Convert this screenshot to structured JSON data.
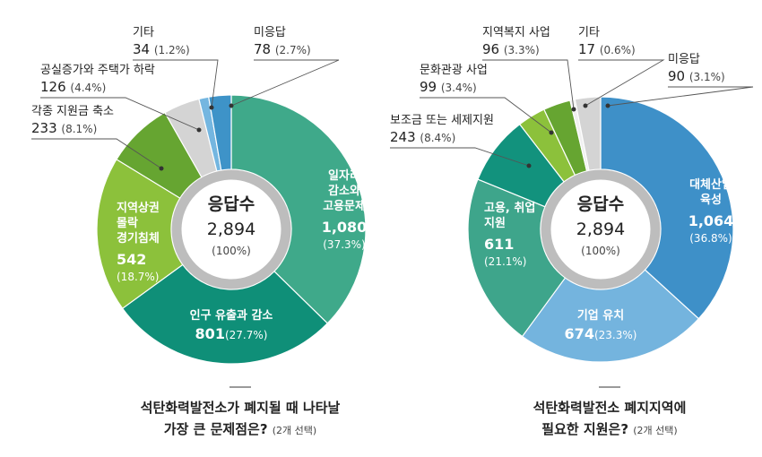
{
  "colors": {
    "teal_light": "#3fa98a",
    "teal_dark": "#0f8f78",
    "lime": "#8cc13b",
    "green": "#66a531",
    "gray_light": "#d4d4d4",
    "sky_light": "#74b6e0",
    "sky": "#3e93c8",
    "blue": "#3e90c8",
    "blue_light": "#74b4de",
    "teal_mid": "#3ea58b",
    "teal_deep": "#12927d",
    "ring": "#bdbdbd",
    "caption_rule": "#9a9a9a"
  },
  "chart_data": [
    {
      "type": "pie",
      "title": "석탄화력발전소가 폐지될 때 나타날 가장 큰 문제점은?",
      "title_line1": "석탄화력발전소가 폐지될 때 나타날",
      "title_line2": "가장 큰 문제점은?",
      "title_note": "(2개 선택)",
      "center_title": "응답수",
      "center_value": "2,894",
      "center_pct": "(100%)",
      "slices": [
        {
          "label": "일자리 감소와 고용문제",
          "lines": [
            "일자리",
            "감소와",
            "고용문제"
          ],
          "value": 1080,
          "value_text": "1,080",
          "pct": "(37.3%)",
          "color": "#3fa98a"
        },
        {
          "label": "인구 유출과 감소",
          "lines": [
            "인구 유출과 감소"
          ],
          "value": 801,
          "value_text": "801",
          "pct": "(27.7%)",
          "color": "#0f8f78"
        },
        {
          "label": "지역상권 몰락 경기침체",
          "lines": [
            "지역상권",
            "몰락",
            "경기침체"
          ],
          "value": 542,
          "value_text": "542",
          "pct": "(18.7%)",
          "color": "#8cc13b"
        },
        {
          "label": "각종 지원금 축소",
          "lines": [
            "각종 지원금 축소"
          ],
          "value": 233,
          "value_text": "233",
          "pct": "(8.1%)",
          "color": "#66a531"
        },
        {
          "label": "공실증가와 주택가 하락",
          "lines": [
            "공실증가와 주택가 하락"
          ],
          "value": 126,
          "value_text": "126",
          "pct": "(4.4%)",
          "color": "#d4d4d4"
        },
        {
          "label": "기타",
          "lines": [
            "기타"
          ],
          "value": 34,
          "value_text": "34",
          "pct": "(1.2%)",
          "color": "#74b6e0"
        },
        {
          "label": "미응답",
          "lines": [
            "미응답"
          ],
          "value": 78,
          "value_text": "78",
          "pct": "(2.7%)",
          "color": "#3e93c8"
        }
      ]
    },
    {
      "type": "pie",
      "title": "석탄화력발전소 폐지지역에 필요한 지원은?",
      "title_line1": "석탄화력발전소 폐지지역에",
      "title_line2": "필요한 지원은?",
      "title_note": "(2개 선택)",
      "center_title": "응답수",
      "center_value": "2,894",
      "center_pct": "(100%)",
      "slices": [
        {
          "label": "대체산업 육성",
          "lines": [
            "대체산업",
            "육성"
          ],
          "value": 1064,
          "value_text": "1,064",
          "pct": "(36.8%)",
          "color": "#3e90c8"
        },
        {
          "label": "기업 유치",
          "lines": [
            "기업 유치"
          ],
          "value": 674,
          "value_text": "674",
          "pct": "(23.3%)",
          "color": "#74b4de"
        },
        {
          "label": "고용, 취업 지원",
          "lines": [
            "고용, 취업",
            "지원"
          ],
          "value": 611,
          "value_text": "611",
          "pct": "(21.1%)",
          "color": "#3ea58b"
        },
        {
          "label": "보조금 또는 세제지원",
          "lines": [
            "보조금 또는 세제지원"
          ],
          "value": 243,
          "value_text": "243",
          "pct": "(8.4%)",
          "color": "#12927d"
        },
        {
          "label": "문화관광 사업",
          "lines": [
            "문화관광 사업"
          ],
          "value": 99,
          "value_text": "99",
          "pct": "(3.4%)",
          "color": "#8cc13b"
        },
        {
          "label": "지역복지 사업",
          "lines": [
            "지역복지 사업"
          ],
          "value": 96,
          "value_text": "96",
          "pct": "(3.3%)",
          "color": "#66a531"
        },
        {
          "label": "기타",
          "lines": [
            "기타"
          ],
          "value": 17,
          "value_text": "17",
          "pct": "(0.6%)",
          "color": "#f0f0f0"
        },
        {
          "label": "미응답",
          "lines": [
            "미응답"
          ],
          "value": 90,
          "value_text": "90",
          "pct": "(3.1%)",
          "color": "#d4d4d4"
        }
      ]
    }
  ]
}
